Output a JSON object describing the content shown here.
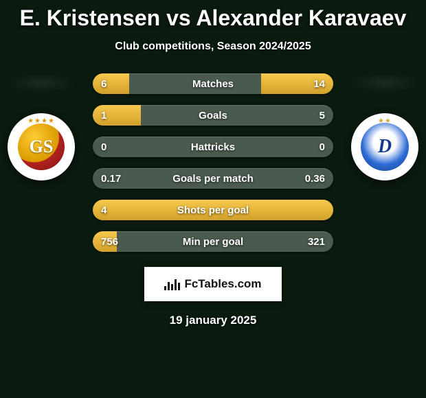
{
  "title": "E. Kristensen vs Alexander Karavaev",
  "subtitle": "Club competitions, Season 2024/2025",
  "date": "19 january 2025",
  "watermark": {
    "text": "FcTables.com"
  },
  "clubs": {
    "left": {
      "name": "galatasaray",
      "stars": "★★★★",
      "star_color": "#d99a00",
      "initials": "GS"
    },
    "right": {
      "name": "dynamo-kyiv",
      "stars": "★★",
      "star_color": "#d9a82f",
      "initials": "D"
    }
  },
  "chart": {
    "type": "opposed-bar",
    "bar_bg": "#4a5a4e",
    "fill_top": "#f7c84e",
    "fill_bottom": "#d2a12a",
    "text_color": "#ffffff",
    "rows": [
      {
        "label": "Matches",
        "left_text": "6",
        "right_text": "14",
        "left_pct": 15,
        "right_pct": 30
      },
      {
        "label": "Goals",
        "left_text": "1",
        "right_text": "5",
        "left_pct": 20,
        "right_pct": 0
      },
      {
        "label": "Hattricks",
        "left_text": "0",
        "right_text": "0",
        "left_pct": 0,
        "right_pct": 0
      },
      {
        "label": "Goals per match",
        "left_text": "0.17",
        "right_text": "0.36",
        "left_pct": 0,
        "right_pct": 0
      },
      {
        "label": "Shots per goal",
        "left_text": "4",
        "right_text": "",
        "left_pct": 100,
        "right_pct": 0
      },
      {
        "label": "Min per goal",
        "left_text": "756",
        "right_text": "321",
        "left_pct": 10,
        "right_pct": 0
      }
    ]
  }
}
